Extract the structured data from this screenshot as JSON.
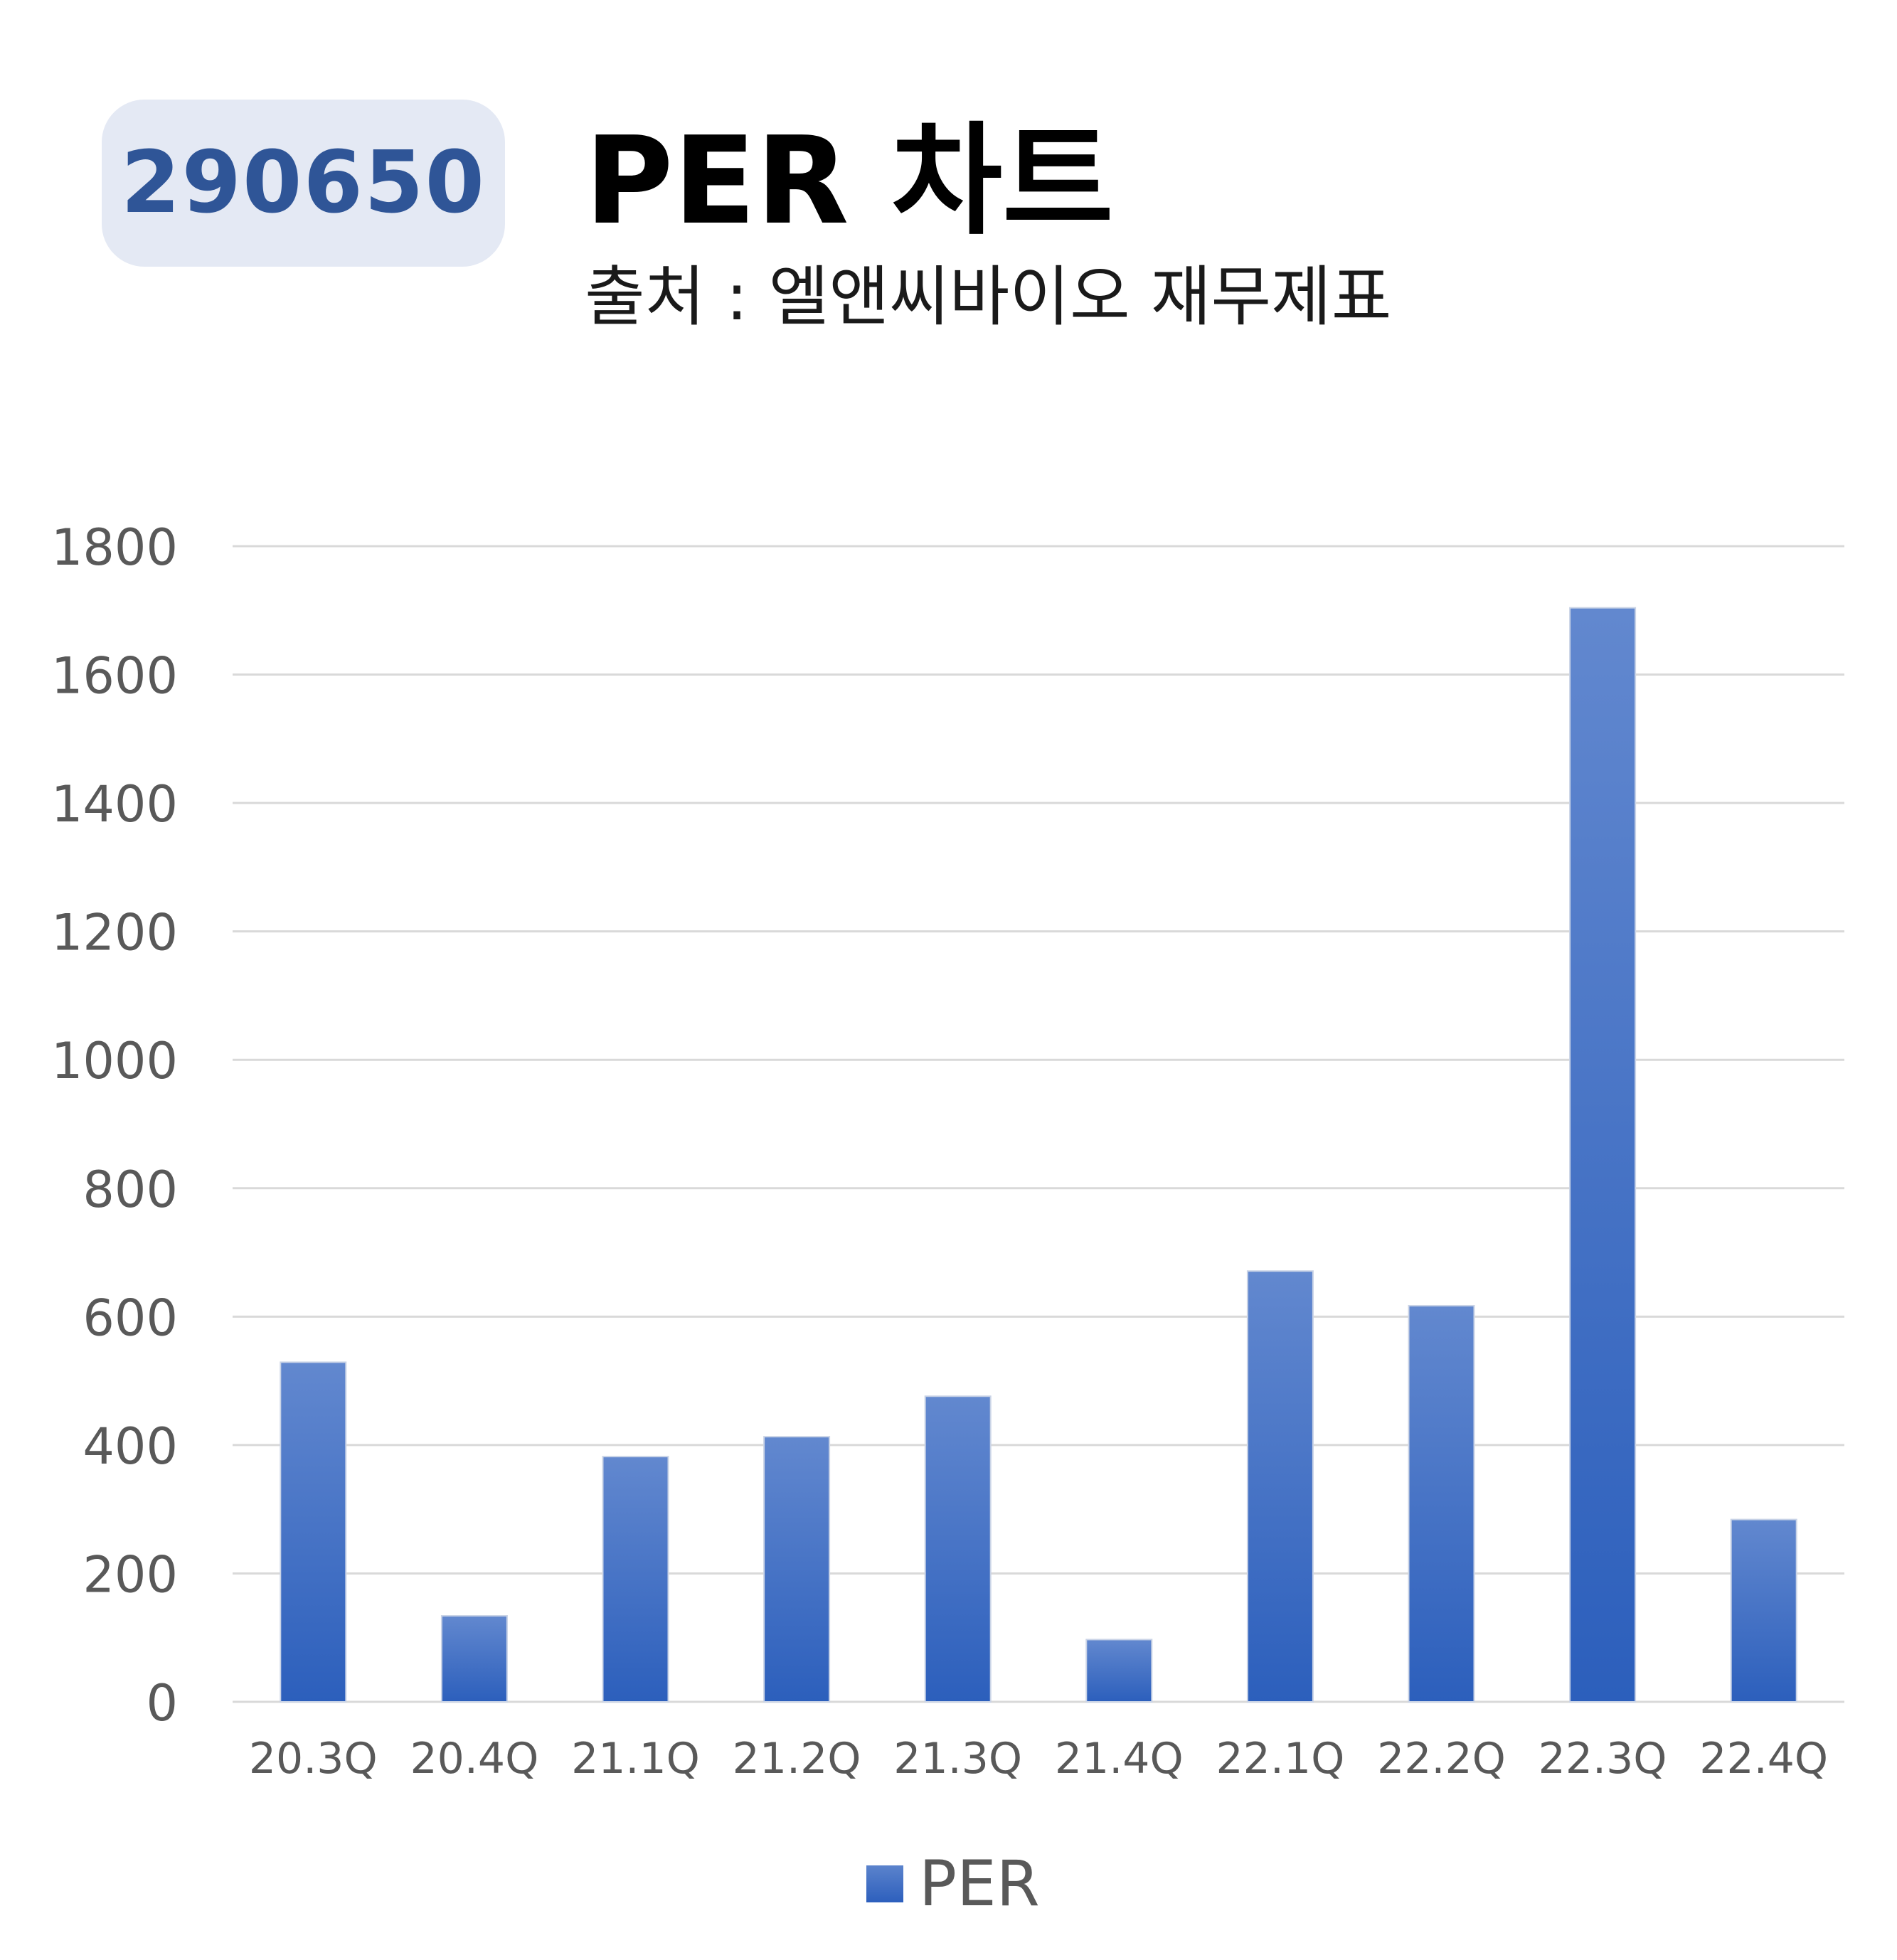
{
  "header": {
    "code_badge": "290650",
    "title": "PER 차트",
    "subtitle": "출처 : 엘앤씨바이오 재무제표"
  },
  "colors": {
    "bar_top": "#6288cf",
    "bar_bottom": "#2c5fbc",
    "badge_bg": "#e4e9f4",
    "badge_text": "#2f5597",
    "grid": "#d9d9d9",
    "axis_text": "#595959"
  },
  "chart_data": {
    "type": "bar",
    "categories": [
      "20.3Q",
      "20.4Q",
      "21.1Q",
      "21.2Q",
      "21.3Q",
      "21.4Q",
      "22.1Q",
      "22.2Q",
      "22.3Q",
      "22.4Q"
    ],
    "series": [
      {
        "name": "PER",
        "values": [
          529,
          134,
          382,
          413,
          476,
          97,
          671,
          617,
          1704,
          284
        ]
      }
    ],
    "yticks": [
      "0",
      "200",
      "400",
      "600",
      "800",
      "1000",
      "1200",
      "1400",
      "1600",
      "1800"
    ],
    "ylim": [
      0,
      1800
    ],
    "grid": true,
    "legend": "bottom",
    "title": "PER 차트",
    "xlabel": "",
    "ylabel": ""
  },
  "legend": {
    "label": "PER"
  }
}
